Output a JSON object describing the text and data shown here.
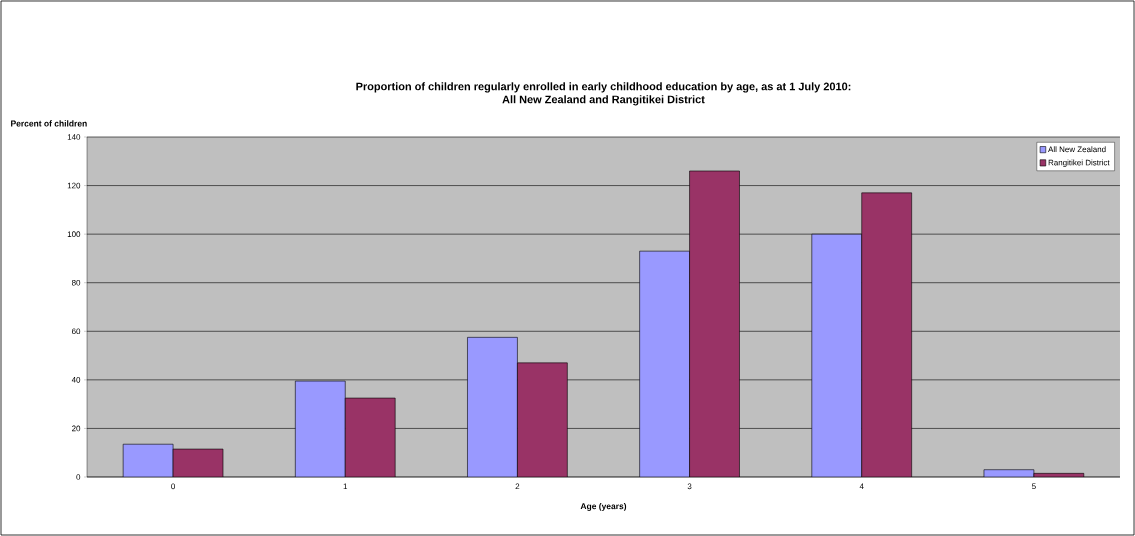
{
  "chart_data": {
    "type": "bar",
    "title": "Proportion of children regularly enrolled in early childhood education by age, as at 1 July 2010:\nAll New Zealand and Rangitikei District",
    "xlabel": "Age (years)",
    "ylabel": "Percent of children",
    "categories": [
      "0",
      "1",
      "2",
      "3",
      "4",
      "5"
    ],
    "series": [
      {
        "name": "All New  Zealand",
        "color": "#9999ff",
        "values": [
          13.5,
          39.5,
          57.5,
          93,
          100,
          3
        ]
      },
      {
        "name": "Rangitikei District",
        "color": "#993366",
        "values": [
          11.5,
          32.5,
          47,
          126,
          117,
          1.5
        ]
      }
    ],
    "ylim": [
      0,
      140
    ],
    "yticks": [
      0,
      20,
      40,
      60,
      80,
      100,
      120,
      140
    ],
    "grid": "y",
    "legend": "top right"
  }
}
